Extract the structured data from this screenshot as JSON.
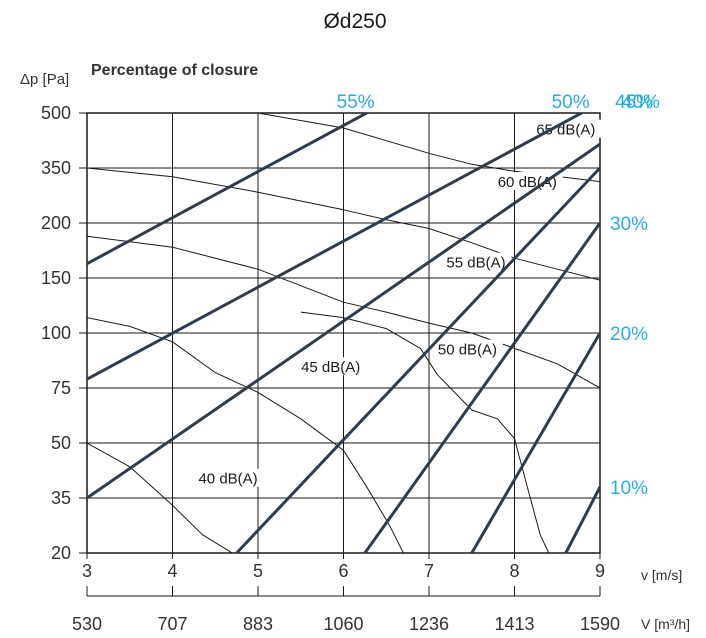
{
  "chart_data": {
    "type": "line",
    "title": "Ød250",
    "ylabel": "Δp [Pa]",
    "xlabel": "v [m/s]",
    "xlabel2": "V [m³/h]",
    "closure_label": "Percentage of closure",
    "x_ticks": [
      "3",
      "4",
      "5",
      "6",
      "7",
      "8",
      "9"
    ],
    "x_tick_values": [
      3,
      4,
      5,
      6,
      7,
      8,
      9
    ],
    "x2_ticks": [
      "530",
      "707",
      "883",
      "1060",
      "1236",
      "1413",
      "1590"
    ],
    "y_ticks": [
      "500",
      "350",
      "200",
      "150",
      "100",
      "75",
      "50",
      "35",
      "20"
    ],
    "y_scale": "nonuniform (one gridline per listed tick, equally spaced)",
    "xlim": [
      3,
      9
    ],
    "grid": true,
    "closure_series": [
      {
        "name": "55%",
        "label_pos": "top",
        "points": [
          [
            3,
            163
          ],
          [
            6.43,
            520
          ]
        ]
      },
      {
        "name": "50%",
        "label_pos": "top",
        "points": [
          [
            3,
            79
          ],
          [
            9,
            527
          ]
        ]
      },
      {
        "name": "45%",
        "label_pos": "top",
        "points": [
          [
            3,
            35
          ],
          [
            9,
            415
          ]
        ]
      },
      {
        "name": "40%",
        "label_pos": "top",
        "points": [
          [
            4.75,
            20
          ],
          [
            9,
            350
          ]
        ]
      },
      {
        "name": "30%",
        "label_pos": "right",
        "points": [
          [
            6.25,
            20
          ],
          [
            9,
            200
          ]
        ]
      },
      {
        "name": "20%",
        "label_pos": "right",
        "points": [
          [
            7.5,
            20
          ],
          [
            9,
            100
          ]
        ]
      },
      {
        "name": "10%",
        "label_pos": "right",
        "points": [
          [
            8.6,
            20
          ],
          [
            9,
            38
          ]
        ]
      }
    ],
    "noise_series": [
      {
        "name": "40 dB(A)",
        "label_at": [
          4.65,
          40
        ],
        "points": [
          [
            3,
            50
          ],
          [
            3.5,
            43.5
          ],
          [
            4,
            33
          ],
          [
            4.35,
            25
          ],
          [
            4.7,
            20
          ]
        ]
      },
      {
        "name": "45 dB(A)",
        "label_at": [
          5.85,
          84
        ],
        "points": [
          [
            3,
            114
          ],
          [
            3.5,
            106
          ],
          [
            4,
            96
          ],
          [
            4.5,
            82
          ],
          [
            5,
            73
          ],
          [
            5.5,
            61
          ],
          [
            6,
            48
          ],
          [
            6.3,
            37
          ],
          [
            6.55,
            27
          ],
          [
            6.7,
            20
          ]
        ]
      },
      {
        "name": "50 dB(A)",
        "label_at": [
          7.45,
          92
        ],
        "points": [
          [
            5.5,
            119
          ],
          [
            6,
            114
          ],
          [
            6.5,
            104
          ],
          [
            6.9,
            93
          ],
          [
            7.1,
            81
          ],
          [
            7.5,
            65
          ],
          [
            7.8,
            61
          ],
          [
            8,
            52
          ],
          [
            8.15,
            38
          ],
          [
            8.3,
            25
          ],
          [
            8.4,
            20
          ]
        ]
      },
      {
        "name": "55 dB(A)",
        "label_at": [
          7.55,
          163
        ],
        "points": [
          [
            3,
            188
          ],
          [
            4,
            178
          ],
          [
            5,
            158
          ],
          [
            6,
            128
          ],
          [
            6.5,
            119
          ],
          [
            7,
            109
          ],
          [
            7.5,
            100
          ],
          [
            8,
            93
          ],
          [
            8.5,
            86
          ],
          [
            9,
            75
          ]
        ]
      },
      {
        "name": "60 dB(A)",
        "label_at": [
          8.15,
          309
        ],
        "points": [
          [
            3,
            350
          ],
          [
            4,
            326
          ],
          [
            5,
            284
          ],
          [
            6,
            236
          ],
          [
            6.5,
            209
          ],
          [
            7,
            195
          ],
          [
            7.5,
            182
          ],
          [
            8,
            168
          ],
          [
            8.5,
            158
          ],
          [
            9,
            148
          ]
        ]
      },
      {
        "name": "65 dB(A)",
        "label_at": [
          8.6,
          452
        ],
        "points": [
          [
            5,
            500
          ],
          [
            6,
            459
          ],
          [
            7,
            390
          ],
          [
            7.5,
            360
          ],
          [
            8,
            341
          ],
          [
            8.5,
            327
          ],
          [
            9,
            313
          ]
        ]
      }
    ],
    "colors": {
      "closure_line": "#2e3d4e",
      "closure_label": "#29abe2",
      "noise_line": "#1a1a1a",
      "grid": "#1a1a1a",
      "axis_text": "#333333"
    }
  }
}
